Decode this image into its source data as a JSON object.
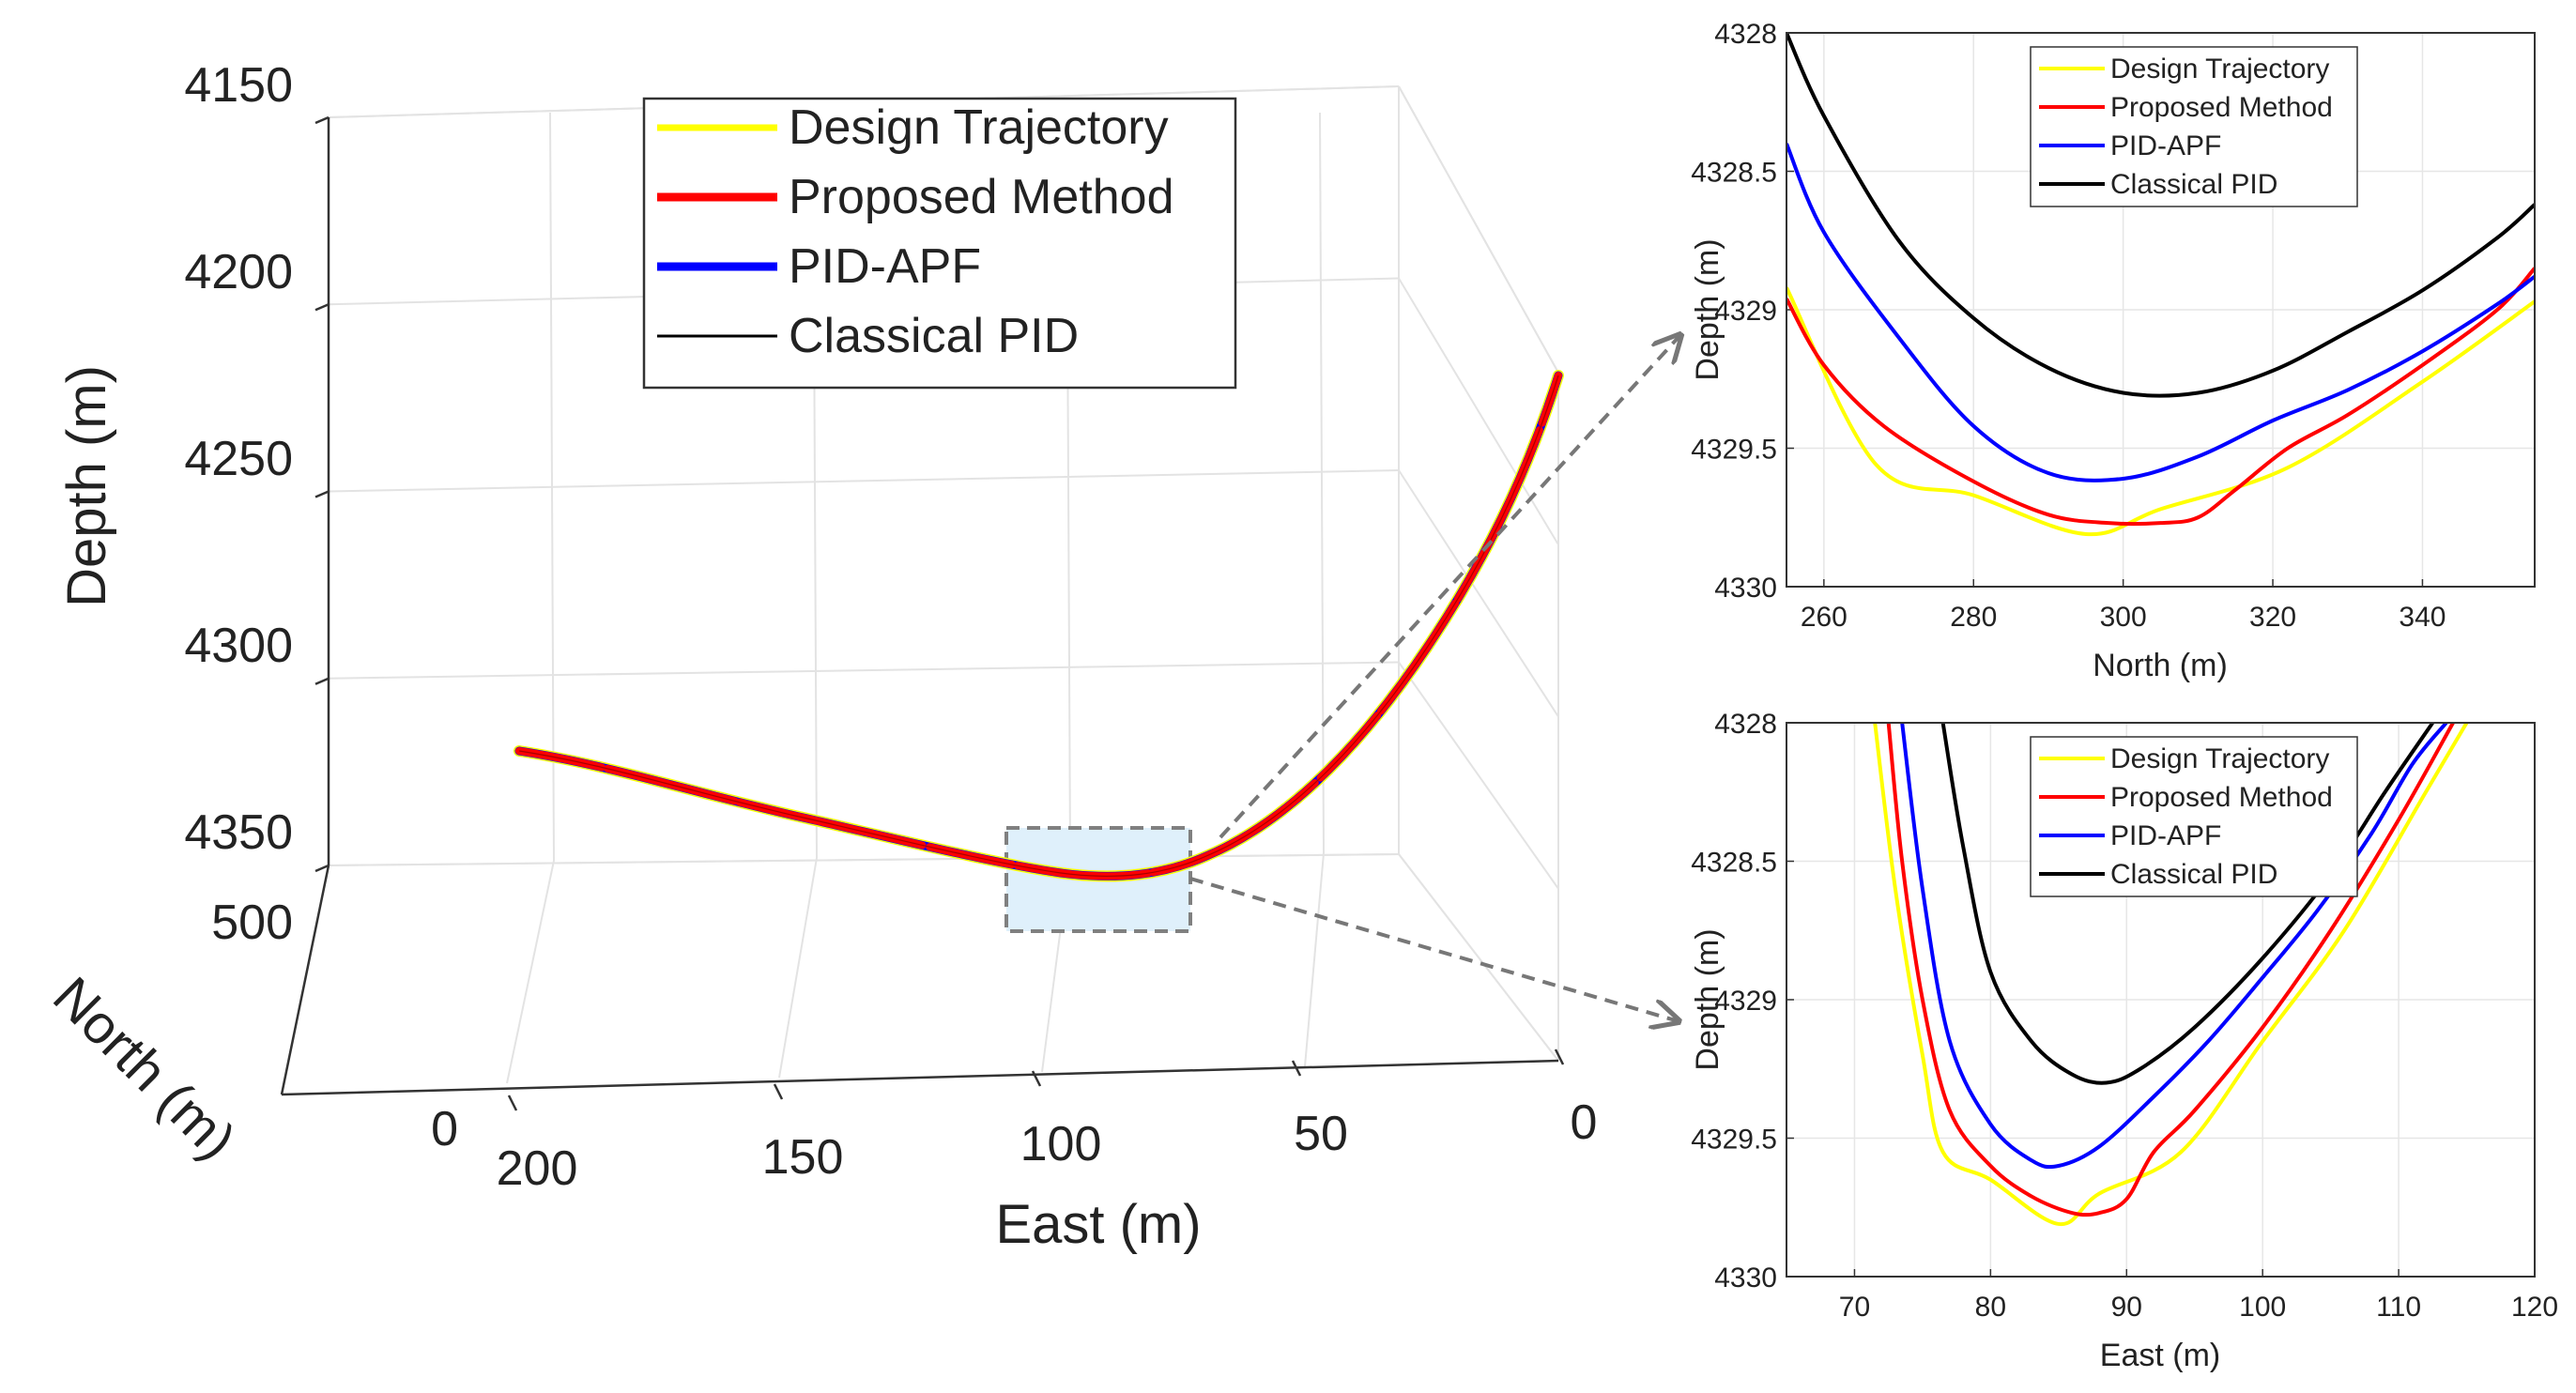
{
  "chart_data": [
    {
      "type": "line",
      "kind": "3d-trajectory",
      "xlabel": "East (m)",
      "ylabel": "North (m)",
      "zlabel": "Depth (m)",
      "x_ticks": [
        "200",
        "150",
        "100",
        "50",
        "0"
      ],
      "y_ticks": [
        "0",
        "500"
      ],
      "z_ticks": [
        "4150",
        "4200",
        "4250",
        "4300",
        "4350"
      ],
      "xlim": [
        0,
        200
      ],
      "ylim": [
        0,
        500
      ],
      "zlim": [
        4150,
        4350
      ],
      "z_reversed": true,
      "grid": true,
      "legend_position": "top-center",
      "highlight_box": "dashed",
      "series": [
        {
          "name": "Design Trajectory",
          "color": "#ffff00"
        },
        {
          "name": "Proposed Method",
          "color": "#ff0000"
        },
        {
          "name": "PID-APF",
          "color": "#0000ff"
        },
        {
          "name": "Classical PID",
          "color": "#000000"
        }
      ]
    },
    {
      "type": "line",
      "xlabel": "North (m)",
      "ylabel": "Depth (m)",
      "xlim": [
        255,
        355
      ],
      "ylim": [
        4328,
        4330
      ],
      "y_reversed": true,
      "x_ticks": [
        260,
        280,
        300,
        320,
        340
      ],
      "y_ticks": [
        4328,
        4328.5,
        4329,
        4329.5,
        4330
      ],
      "grid": true,
      "legend_position": "top-center",
      "series": [
        {
          "name": "Design Trajectory",
          "color": "#ffff00",
          "x": [
            255,
            267,
            280,
            295,
            305,
            322,
            340,
            355
          ],
          "y": [
            4328.92,
            4329.56,
            4329.67,
            4329.81,
            4329.72,
            4329.57,
            4329.26,
            4328.97
          ]
        },
        {
          "name": "Proposed Method",
          "color": "#ff0000",
          "x": [
            255,
            260,
            268,
            280,
            290,
            298,
            305,
            310,
            315,
            322,
            330,
            340,
            350,
            355
          ],
          "y": [
            4328.96,
            4329.2,
            4329.42,
            4329.62,
            4329.74,
            4329.77,
            4329.77,
            4329.75,
            4329.65,
            4329.5,
            4329.38,
            4329.2,
            4329.0,
            4328.85
          ]
        },
        {
          "name": "PID-APF",
          "color": "#0000ff",
          "x": [
            255,
            260,
            270,
            280,
            290,
            300,
            310,
            320,
            330,
            340,
            350,
            355
          ],
          "y": [
            4328.4,
            4328.72,
            4329.1,
            4329.42,
            4329.59,
            4329.61,
            4329.53,
            4329.4,
            4329.29,
            4329.15,
            4328.98,
            4328.88
          ]
        },
        {
          "name": "Classical PID",
          "color": "#000000",
          "x": [
            255,
            260,
            270,
            280,
            290,
            300,
            310,
            320,
            330,
            340,
            350,
            355
          ],
          "y": [
            4328.0,
            4328.3,
            4328.75,
            4329.03,
            4329.21,
            4329.3,
            4329.3,
            4329.22,
            4329.08,
            4328.93,
            4328.74,
            4328.62
          ]
        }
      ]
    },
    {
      "type": "line",
      "xlabel": "East (m)",
      "ylabel": "Depth (m)",
      "xlim": [
        65,
        120
      ],
      "ylim": [
        4328,
        4330
      ],
      "y_reversed": true,
      "x_ticks": [
        70,
        80,
        90,
        100,
        110,
        120
      ],
      "y_ticks": [
        4328,
        4328.5,
        4329,
        4329.5,
        4330
      ],
      "grid": true,
      "legend_position": "top-center",
      "series": [
        {
          "name": "Design Trajectory",
          "color": "#ffff00",
          "x": [
            71.5,
            73,
            75,
            76.5,
            80,
            85,
            88,
            94,
            100,
            106,
            112,
            115
          ],
          "y": [
            4328.0,
            4328.6,
            4329.2,
            4329.55,
            4329.65,
            4329.81,
            4329.7,
            4329.55,
            4329.15,
            4328.75,
            4328.25,
            4328.0
          ]
        },
        {
          "name": "Proposed Method",
          "color": "#ff0000",
          "x": [
            72.5,
            73.5,
            75,
            77,
            80,
            83,
            86,
            88,
            90,
            92,
            95,
            100,
            105,
            110,
            114
          ],
          "y": [
            4328.0,
            4328.5,
            4329.0,
            4329.4,
            4329.6,
            4329.71,
            4329.77,
            4329.77,
            4329.72,
            4329.55,
            4329.4,
            4329.1,
            4328.75,
            4328.35,
            4328.0
          ]
        },
        {
          "name": "PID-APF",
          "color": "#0000ff",
          "x": [
            73.5,
            75,
            77,
            80,
            83,
            85,
            88,
            92,
            96,
            100,
            104,
            108,
            111,
            113.5
          ],
          "y": [
            4328.0,
            4328.6,
            4329.15,
            4329.45,
            4329.58,
            4329.6,
            4329.53,
            4329.35,
            4329.15,
            4328.92,
            4328.68,
            4328.4,
            4328.15,
            4328.0
          ]
        },
        {
          "name": "Classical PID",
          "color": "#000000",
          "x": [
            76.5,
            78,
            80,
            83,
            86,
            88.5,
            91,
            95,
            100,
            105,
            109,
            112.5
          ],
          "y": [
            4328.0,
            4328.45,
            4328.9,
            4329.15,
            4329.27,
            4329.3,
            4329.25,
            4329.1,
            4328.85,
            4328.55,
            4328.25,
            4328.0
          ]
        }
      ]
    }
  ]
}
